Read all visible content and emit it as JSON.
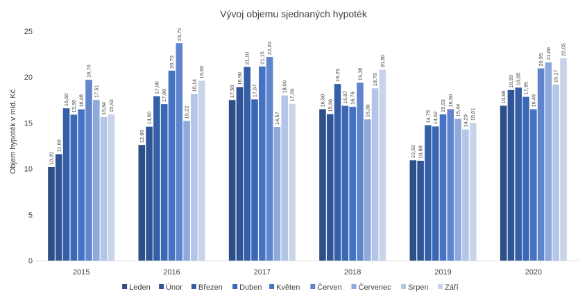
{
  "chart_data": {
    "type": "bar",
    "title": "Vývoj objemu  sjednaných hypoték",
    "ylabel": "Objem hypoték v mld. Kč",
    "xlabel": "",
    "ylim": [
      0,
      25
    ],
    "yticks": [
      "0",
      "5",
      "10",
      "15",
      "20",
      "25"
    ],
    "grid": false,
    "legend_position": "bottom",
    "categories": [
      "2015",
      "2016",
      "2017",
      "2018",
      "2019",
      "2020"
    ],
    "series": [
      {
        "name": "Leden",
        "color": "#2e4f86",
        "values": [
          10.2,
          12.6,
          17.5,
          16.5,
          10.93,
          16.88
        ],
        "labels": [
          "10,20",
          "12,60",
          "17,50",
          "16,50",
          "10,93",
          "16,88"
        ]
      },
      {
        "name": "Únor",
        "color": "#2f5597",
        "values": [
          11.6,
          14.6,
          18.9,
          15.96,
          10.88,
          18.59
        ],
        "labels": [
          "11,60",
          "14,60",
          "18,90",
          "15,96",
          "10,88",
          "18,59"
        ]
      },
      {
        "name": "Březen",
        "color": "#3560a8",
        "values": [
          16.6,
          17.9,
          21.1,
          19.25,
          14.75,
          18.85
        ],
        "labels": [
          "16,60",
          "17,90",
          "21,10",
          "19,25",
          "14,75",
          "18,85"
        ]
      },
      {
        "name": "Duben",
        "color": "#3a68b5",
        "values": [
          15.9,
          17.06,
          17.57,
          16.87,
          14.62,
          17.85
        ],
        "labels": [
          "15,90",
          "17,06",
          "17,57",
          "16,87",
          "14,62",
          "17,85"
        ]
      },
      {
        "name": "Květen",
        "color": "#4472c4",
        "values": [
          16.48,
          20.7,
          21.15,
          16.76,
          15.93,
          16.49
        ],
        "labels": [
          "16,48",
          "20,70",
          "21,15",
          "16,76",
          "15,93",
          "16,49"
        ]
      },
      {
        "name": "Červen",
        "color": "#6185cc",
        "values": [
          19.7,
          23.7,
          22.2,
          19.38,
          16.5,
          20.95
        ],
        "labels": [
          "19,70",
          "23,70",
          "22,20",
          "19,38",
          "16,50",
          "20,95"
        ]
      },
      {
        "name": "Červenec",
        "color": "#8ea9db",
        "values": [
          17.51,
          15.22,
          14.57,
          15.39,
          15.44,
          21.6
        ],
        "labels": [
          "17,51",
          "15,22",
          "14,57",
          "15,39",
          "15,44",
          "21,60"
        ]
      },
      {
        "name": "Srpen",
        "color": "#b4c6e7",
        "values": [
          15.64,
          18.14,
          18.0,
          18.78,
          14.29,
          19.17
        ],
        "labels": [
          "15,64",
          "18,14",
          "18,00",
          "18,78",
          "14,29",
          "19,17"
        ]
      },
      {
        "name": "Září",
        "color": "#c9d4ea",
        "values": [
          15.93,
          19.6,
          17.09,
          20.8,
          15.01,
          22.05
        ],
        "labels": [
          "15,93",
          "19,60",
          "17,09",
          "20,80",
          "15,01",
          "22,05"
        ]
      }
    ],
    "axis_color": "#d9d9d9"
  }
}
